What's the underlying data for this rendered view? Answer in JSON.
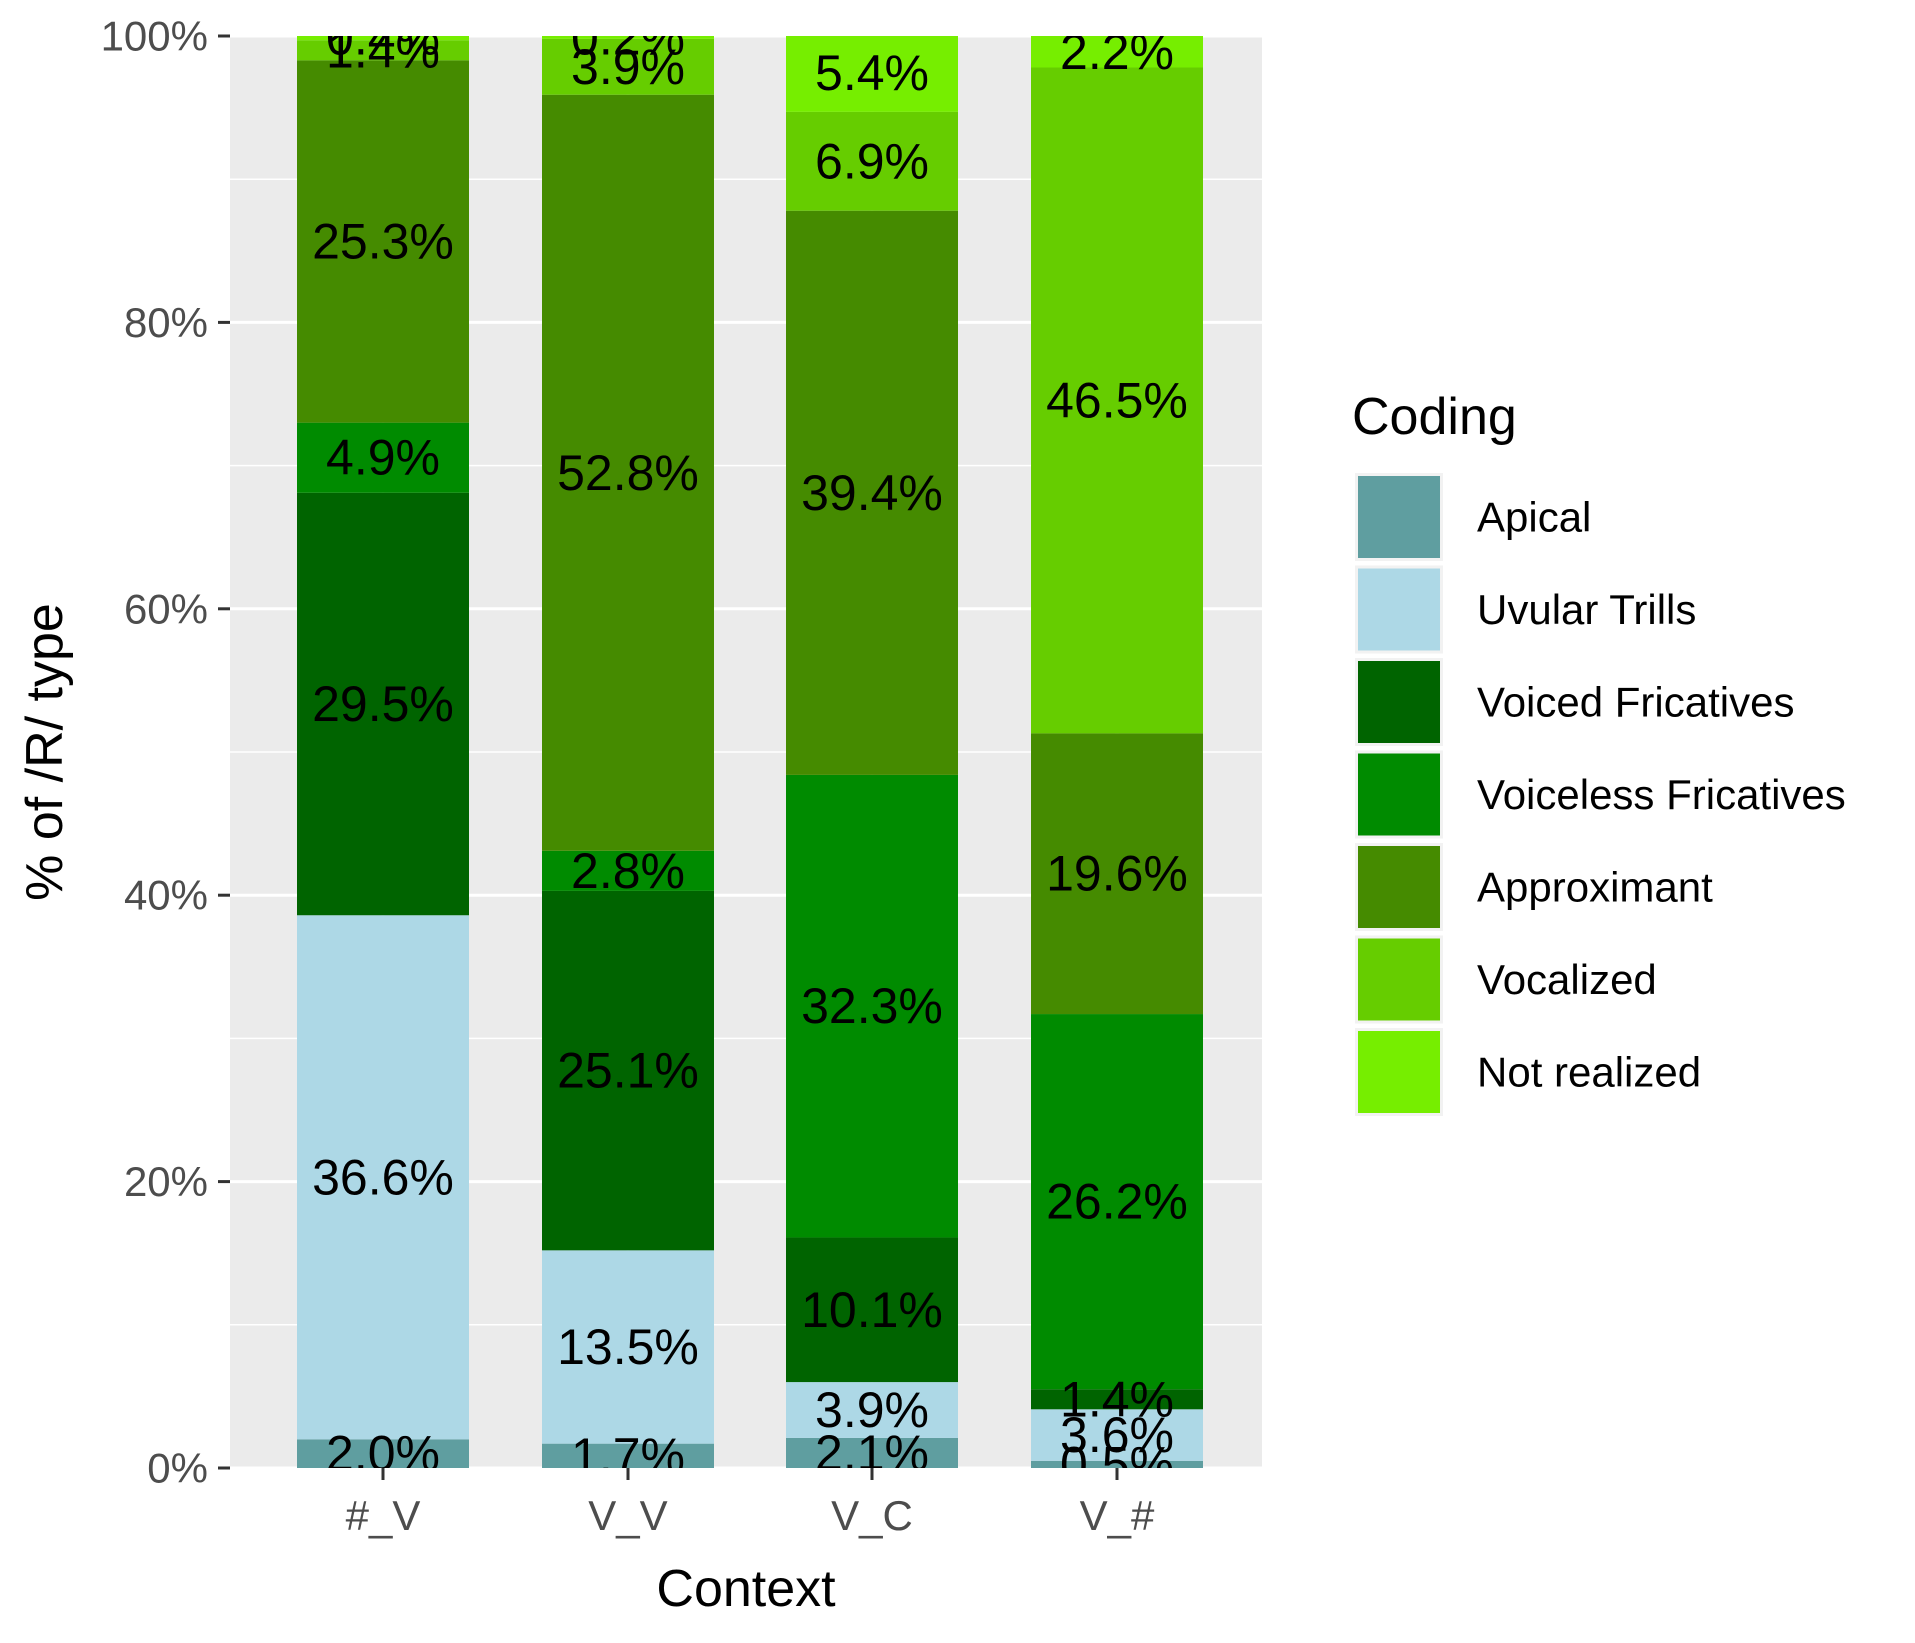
{
  "chart_data": {
    "type": "bar",
    "stacked": true,
    "title": "",
    "xlabel": "Context",
    "ylabel": "% of /R/ type",
    "ylim": [
      0,
      100
    ],
    "y_ticks": [
      "0%",
      "20%",
      "40%",
      "60%",
      "80%",
      "100%"
    ],
    "y_tick_values": [
      0,
      20,
      40,
      60,
      80,
      100
    ],
    "categories": [
      "#_V",
      "V_V",
      "V_C",
      "V_#"
    ],
    "legend": {
      "title": "Coding",
      "placement": "right"
    },
    "series": [
      {
        "name": "Apical",
        "color": "#5F9EA0",
        "values": [
          2.0,
          1.7,
          2.1,
          0.5
        ],
        "labels": [
          "2.0%",
          "1.7%",
          "2.1%",
          "0.5%"
        ]
      },
      {
        "name": "Uvular Trills",
        "color": "#ADD8E6",
        "values": [
          36.6,
          13.5,
          3.9,
          3.6
        ],
        "labels": [
          "36.6%",
          "13.5%",
          "3.9%",
          "3.6%"
        ]
      },
      {
        "name": "Voiced Fricatives",
        "color": "#006400",
        "values": [
          29.5,
          25.1,
          10.1,
          1.4
        ],
        "labels": [
          "29.5%",
          "25.1%",
          "10.1%",
          "1.4%"
        ]
      },
      {
        "name": "Voiceless Fricatives",
        "color": "#008B00",
        "values": [
          4.9,
          2.8,
          32.3,
          26.2
        ],
        "labels": [
          "4.9%",
          "2.8%",
          "32.3%",
          "26.2%"
        ]
      },
      {
        "name": "Approximant",
        "color": "#458B00",
        "values": [
          25.3,
          52.8,
          39.4,
          19.6
        ],
        "labels": [
          "25.3%",
          "52.8%",
          "39.4%",
          "19.6%"
        ]
      },
      {
        "name": "Vocalized",
        "color": "#66CD00",
        "values": [
          1.4,
          3.9,
          6.9,
          46.5
        ],
        "labels": [
          "1.4%",
          "3.9%",
          "6.9%",
          "46.5%"
        ]
      },
      {
        "name": "Not realized",
        "color": "#76EE00",
        "values": [
          0.4,
          0.2,
          5.4,
          2.2
        ],
        "labels": [
          "0.4%",
          "0.2%",
          "5.4%",
          "2.2%"
        ]
      }
    ]
  }
}
